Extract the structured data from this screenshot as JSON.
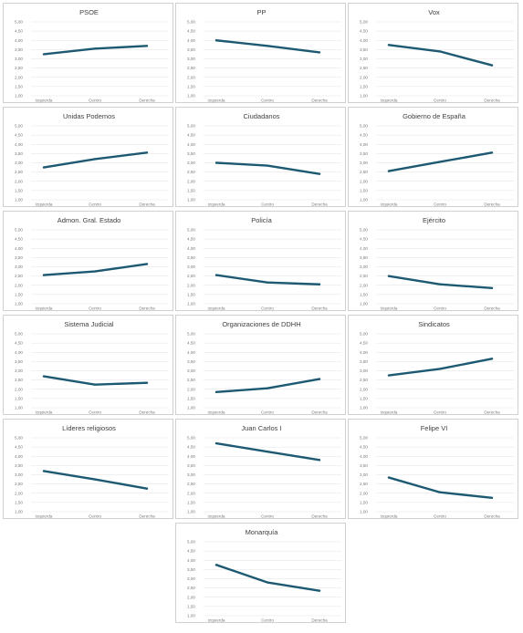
{
  "line_color": "#1d5a72",
  "chart_data": [
    {
      "type": "line",
      "title": "PSOE",
      "categories": [
        "Izquierda",
        "Centro",
        "Derecha"
      ],
      "values": [
        3.25,
        3.55,
        3.7
      ],
      "ylim": [
        1,
        5
      ],
      "yticks": [
        "1,00",
        "1,50",
        "2,00",
        "2,50",
        "3,00",
        "3,50",
        "4,00",
        "4,50",
        "5,00"
      ],
      "grid": true
    },
    {
      "type": "line",
      "title": "PP",
      "categories": [
        "Izquierda",
        "Centro",
        "Derecha"
      ],
      "values": [
        4.0,
        3.7,
        3.35
      ],
      "ylim": [
        1,
        5
      ],
      "yticks": [
        "1,00",
        "1,50",
        "2,00",
        "2,50",
        "3,00",
        "3,50",
        "4,00",
        "4,50",
        "5,00"
      ],
      "grid": true
    },
    {
      "type": "line",
      "title": "Vox",
      "categories": [
        "Izquierda",
        "Centro",
        "Derecha"
      ],
      "values": [
        3.75,
        3.4,
        2.65
      ],
      "ylim": [
        1,
        5
      ],
      "yticks": [
        "1,00",
        "1,50",
        "2,00",
        "2,50",
        "3,00",
        "3,50",
        "4,00",
        "4,50",
        "5,00"
      ],
      "grid": true
    },
    {
      "type": "line",
      "title": "Unidas Podemos",
      "categories": [
        "Izquierda",
        "Centro",
        "Derecha"
      ],
      "values": [
        2.75,
        3.2,
        3.55
      ],
      "ylim": [
        1,
        5
      ],
      "yticks": [
        "1,00",
        "1,50",
        "2,00",
        "2,50",
        "3,00",
        "3,50",
        "4,00",
        "4,50",
        "5,00"
      ],
      "grid": true
    },
    {
      "type": "line",
      "title": "Ciudadanos",
      "categories": [
        "Izquierda",
        "Centro",
        "Derecha"
      ],
      "values": [
        3.0,
        2.85,
        2.4
      ],
      "ylim": [
        1,
        5
      ],
      "yticks": [
        "1,00",
        "1,50",
        "2,00",
        "2,50",
        "3,00",
        "3,50",
        "4,00",
        "4,50",
        "5,00"
      ],
      "grid": true
    },
    {
      "type": "line",
      "title": "Gobierno de España",
      "categories": [
        "Izquierda",
        "Centro",
        "Derecha"
      ],
      "values": [
        2.55,
        3.05,
        3.55
      ],
      "ylim": [
        1,
        5
      ],
      "yticks": [
        "1,00",
        "1,50",
        "2,00",
        "2,50",
        "3,00",
        "3,50",
        "4,00",
        "4,50",
        "5,00"
      ],
      "grid": true
    },
    {
      "type": "line",
      "title": "Admon. Gral. Estado",
      "categories": [
        "Izquierda",
        "Centro",
        "Derecha"
      ],
      "values": [
        2.55,
        2.75,
        3.15
      ],
      "ylim": [
        1,
        5
      ],
      "yticks": [
        "1,00",
        "1,50",
        "2,00",
        "2,50",
        "3,00",
        "3,50",
        "4,00",
        "4,50",
        "5,00"
      ],
      "grid": true
    },
    {
      "type": "line",
      "title": "Policía",
      "categories": [
        "Izquierda",
        "Centro",
        "Derecha"
      ],
      "values": [
        2.55,
        2.15,
        2.05
      ],
      "ylim": [
        1,
        5
      ],
      "yticks": [
        "1,00",
        "1,50",
        "2,00",
        "2,50",
        "3,00",
        "3,50",
        "4,00",
        "4,50",
        "5,00"
      ],
      "grid": true
    },
    {
      "type": "line",
      "title": "Ejército",
      "categories": [
        "Izquierda",
        "Centro",
        "Derecha"
      ],
      "values": [
        2.5,
        2.05,
        1.85
      ],
      "ylim": [
        1,
        5
      ],
      "yticks": [
        "1,00",
        "1,50",
        "2,00",
        "2,50",
        "3,00",
        "3,50",
        "4,00",
        "4,50",
        "5,00"
      ],
      "grid": true
    },
    {
      "type": "line",
      "title": "Sistema Judicial",
      "categories": [
        "Izquierda",
        "Centro",
        "Derecha"
      ],
      "values": [
        2.7,
        2.25,
        2.35
      ],
      "ylim": [
        1,
        5
      ],
      "yticks": [
        "1,00",
        "1,50",
        "2,00",
        "2,50",
        "3,00",
        "3,50",
        "4,00",
        "4,50",
        "5,00"
      ],
      "grid": true
    },
    {
      "type": "line",
      "title": "Organizaciones de DDHH",
      "categories": [
        "Izquierda",
        "Centro",
        "Derecha"
      ],
      "values": [
        1.85,
        2.05,
        2.55
      ],
      "ylim": [
        1,
        5
      ],
      "yticks": [
        "1,00",
        "1,50",
        "2,00",
        "2,50",
        "3,00",
        "3,50",
        "4,00",
        "4,50",
        "5,00"
      ],
      "grid": true
    },
    {
      "type": "line",
      "title": "Sindicatos",
      "categories": [
        "Izquierda",
        "Centro",
        "Derecha"
      ],
      "values": [
        2.75,
        3.1,
        3.65
      ],
      "ylim": [
        1,
        5
      ],
      "yticks": [
        "1,00",
        "1,50",
        "2,00",
        "2,50",
        "3,00",
        "3,50",
        "4,00",
        "4,50",
        "5,00"
      ],
      "grid": true
    },
    {
      "type": "line",
      "title": "Líderes religiosos",
      "categories": [
        "Izquierda",
        "Centro",
        "Derecha"
      ],
      "values": [
        3.2,
        2.75,
        2.25
      ],
      "ylim": [
        1,
        5
      ],
      "yticks": [
        "1,00",
        "1,50",
        "2,00",
        "2,50",
        "3,00",
        "3,50",
        "4,00",
        "4,50",
        "5,00"
      ],
      "grid": true
    },
    {
      "type": "line",
      "title": "Juan Carlos I",
      "categories": [
        "Izquierda",
        "Centro",
        "Derecha"
      ],
      "values": [
        4.7,
        4.25,
        3.8
      ],
      "ylim": [
        1,
        5
      ],
      "yticks": [
        "1,00",
        "1,50",
        "2,00",
        "2,50",
        "3,00",
        "3,50",
        "4,00",
        "4,50",
        "5,00"
      ],
      "grid": true
    },
    {
      "type": "line",
      "title": "Felipe VI",
      "categories": [
        "Izquierda",
        "Centro",
        "Derecha"
      ],
      "values": [
        2.85,
        2.05,
        1.75
      ],
      "ylim": [
        1,
        5
      ],
      "yticks": [
        "1,00",
        "1,50",
        "2,00",
        "2,50",
        "3,00",
        "3,50",
        "4,00",
        "4,50",
        "5,00"
      ],
      "grid": true
    },
    {
      "type": "line",
      "title": "Monarquía",
      "categories": [
        "Izquierda",
        "Centro",
        "Derecha"
      ],
      "values": [
        3.75,
        2.8,
        2.35
      ],
      "ylim": [
        1,
        5
      ],
      "yticks": [
        "1,00",
        "1,50",
        "2,00",
        "2,50",
        "3,00",
        "3,50",
        "4,00",
        "4,50",
        "5,00"
      ],
      "grid": true
    }
  ]
}
